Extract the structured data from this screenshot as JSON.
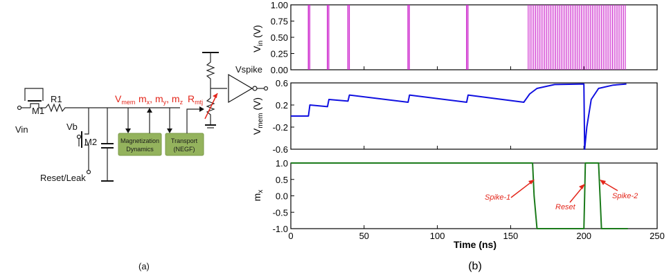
{
  "circuit": {
    "vin": "Vin",
    "r1": "R1",
    "m1": "M1",
    "m2": "M2",
    "vb": "Vb",
    "reset": "Reset/Leak",
    "vmem_main": "V",
    "vmem_sub": "mem",
    "m_main": "m",
    "mx_sub": "x",
    "my_sub": "y",
    "mz_sub": "z",
    "rmtj_main": "R",
    "rmtj_sub": "mtj",
    "vspike": "Vspike",
    "box1_line1": "Magnetization",
    "box1_line2": "Dynamics",
    "box2_line1": "Transport",
    "box2_line2": "(NEGF)",
    "caption": "(a)",
    "colors": {
      "label_red": "#e3261b",
      "box_green": "#94b35d"
    }
  },
  "plots": {
    "caption": "(b)",
    "xlabel": "Time (ns)",
    "x_ticks": [
      "0",
      "50",
      "100",
      "150",
      "200",
      "250"
    ],
    "top": {
      "ylabel_main": "V",
      "ylabel_sub": "in",
      "ylabel_unit": " (V)",
      "y_ticks": [
        "1.00",
        "0.75",
        "0.50",
        "0.25",
        "0.00"
      ]
    },
    "mid": {
      "ylabel_main": "V",
      "ylabel_sub": "mem",
      "ylabel_unit": " (V)",
      "y_ticks": [
        "0.6",
        "0.2",
        "-0.2",
        "-0.6"
      ]
    },
    "bot": {
      "ylabel_main": "m",
      "ylabel_sub": "x",
      "ylabel_unit": "",
      "y_ticks": [
        "1.0",
        "0.5",
        "0.0",
        "-0.5",
        "-1.0"
      ]
    },
    "annotations": {
      "spike1": "Spike-1",
      "reset": "Reset",
      "spike2": "Spike-2"
    }
  },
  "chart_data": [
    {
      "type": "line",
      "name": "Vin",
      "xlim": [
        0,
        250
      ],
      "ylim": [
        0,
        1
      ],
      "pulses_at_ns": [
        12,
        25,
        39,
        80,
        120
      ],
      "pulse_train_ns": [
        162,
        229
      ],
      "pulse_amplitude": 1.0,
      "color": "#cc22cc"
    },
    {
      "type": "line",
      "name": "Vmem",
      "xlim": [
        0,
        250
      ],
      "ylim": [
        -0.6,
        0.6
      ],
      "x": [
        0,
        12,
        13,
        25,
        26,
        39,
        40,
        80,
        81,
        120,
        121,
        159,
        163,
        168,
        180,
        200,
        200.5,
        202,
        205,
        210,
        220,
        229
      ],
      "y": [
        0.0,
        0.0,
        0.2,
        0.17,
        0.3,
        0.27,
        0.38,
        0.25,
        0.38,
        0.25,
        0.38,
        0.25,
        0.4,
        0.5,
        0.57,
        0.58,
        -0.6,
        -0.2,
        0.3,
        0.5,
        0.56,
        0.58
      ],
      "color": "#1010e0"
    },
    {
      "type": "line",
      "name": "mx",
      "xlim": [
        0,
        250
      ],
      "ylim": [
        -1,
        1
      ],
      "x": [
        0,
        165,
        166,
        168,
        200,
        200.5,
        201,
        210,
        211,
        212,
        230
      ],
      "y": [
        1,
        1,
        0,
        -1,
        -1,
        0,
        1,
        1,
        0,
        -1,
        -1
      ],
      "color": "#1a7a1a"
    }
  ]
}
